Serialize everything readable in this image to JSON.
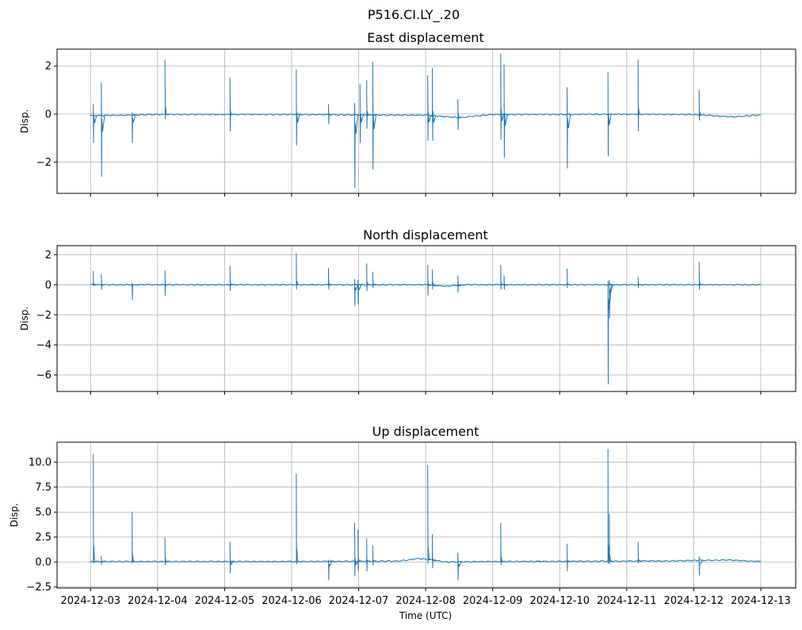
{
  "chart_data": {
    "title": "P516.CI.LY_.20",
    "type": "line",
    "xlabel": "Time (UTC)",
    "x_ticks": [
      "2024-12-03",
      "2024-12-04",
      "2024-12-05",
      "2024-12-06",
      "2024-12-07",
      "2024-12-08",
      "2024-12-09",
      "2024-12-10",
      "2024-12-11",
      "2024-12-12",
      "2024-12-13"
    ],
    "xlim": [
      "2024-12-02T12:00",
      "2024-12-13T12:30"
    ],
    "grid": true,
    "line_color": "#1f77b4",
    "panels": [
      {
        "title": "East displacement",
        "ylabel": "Disp.",
        "ylim": [
          -3.3,
          2.7
        ],
        "yticks": [
          2,
          0,
          -2
        ],
        "ytick_labels": [
          "2",
          "0",
          "−2"
        ],
        "baseline": [
          [
            0.0,
            -0.07
          ],
          [
            1.0,
            -0.02
          ],
          [
            3.0,
            -0.02
          ],
          [
            5.0,
            -0.05
          ],
          [
            5.5,
            -0.15
          ],
          [
            5.75,
            -0.08
          ],
          [
            6.0,
            -0.02
          ],
          [
            8.0,
            -0.01
          ],
          [
            9.0,
            -0.02
          ],
          [
            9.6,
            -0.12
          ],
          [
            9.9,
            -0.05
          ],
          [
            10.0,
            -0.05
          ]
        ],
        "spikes": [
          {
            "t": 0.04,
            "max": 0.4,
            "min": -1.2
          },
          {
            "t": 0.16,
            "max": 1.3,
            "min": -2.6
          },
          {
            "t": 0.62,
            "max": 0.05,
            "min": -1.2
          },
          {
            "t": 1.11,
            "max": 2.25,
            "min": -0.2
          },
          {
            "t": 2.08,
            "max": 1.5,
            "min": -0.7
          },
          {
            "t": 3.07,
            "max": 1.85,
            "min": -1.3
          },
          {
            "t": 3.55,
            "max": 0.4,
            "min": -0.4
          },
          {
            "t": 3.94,
            "max": 0.45,
            "min": -3.05
          },
          {
            "t": 4.02,
            "max": 1.25,
            "min": -1.2
          },
          {
            "t": 4.12,
            "max": 1.4,
            "min": -0.6
          },
          {
            "t": 4.21,
            "max": 2.15,
            "min": -2.3
          },
          {
            "t": 5.03,
            "max": 1.6,
            "min": -1.1
          },
          {
            "t": 5.1,
            "max": 1.9,
            "min": -1.1
          },
          {
            "t": 5.48,
            "max": 0.6,
            "min": -0.65
          },
          {
            "t": 6.12,
            "max": 2.5,
            "min": -1.05
          },
          {
            "t": 6.17,
            "max": 2.05,
            "min": -1.8
          },
          {
            "t": 7.11,
            "max": 1.1,
            "min": -2.25
          },
          {
            "t": 7.72,
            "max": 1.75,
            "min": -1.75
          },
          {
            "t": 8.17,
            "max": 2.25,
            "min": -0.7
          },
          {
            "t": 9.08,
            "max": 1.0,
            "min": -0.25
          }
        ]
      },
      {
        "title": "North displacement",
        "ylabel": "Disp.",
        "ylim": [
          -7.1,
          2.6
        ],
        "yticks": [
          2,
          0,
          -2,
          -4,
          -6
        ],
        "ytick_labels": [
          "2",
          "0",
          "−2",
          "−4",
          "−6"
        ],
        "baseline": [
          [
            0.0,
            0.0
          ],
          [
            5.0,
            0.0
          ],
          [
            5.3,
            -0.1
          ],
          [
            5.6,
            0.0
          ],
          [
            10.0,
            0.0
          ]
        ],
        "spikes": [
          {
            "t": 0.04,
            "max": 0.9,
            "min": -0.05
          },
          {
            "t": 0.16,
            "max": 0.7,
            "min": -0.3
          },
          {
            "t": 0.62,
            "max": 0.1,
            "min": -1.0
          },
          {
            "t": 1.11,
            "max": 0.95,
            "min": -0.7
          },
          {
            "t": 2.08,
            "max": 1.25,
            "min": -0.4
          },
          {
            "t": 3.07,
            "max": 2.1,
            "min": -0.3
          },
          {
            "t": 3.55,
            "max": 1.1,
            "min": -0.3
          },
          {
            "t": 3.94,
            "max": 0.35,
            "min": -1.4
          },
          {
            "t": 3.99,
            "max": 0.3,
            "min": -1.3
          },
          {
            "t": 4.12,
            "max": 1.4,
            "min": -0.4
          },
          {
            "t": 4.21,
            "max": 0.85,
            "min": -0.2
          },
          {
            "t": 5.03,
            "max": 1.3,
            "min": -0.7
          },
          {
            "t": 5.1,
            "max": 1.0,
            "min": -0.3
          },
          {
            "t": 5.48,
            "max": 0.6,
            "min": -0.5
          },
          {
            "t": 6.12,
            "max": 1.3,
            "min": -0.3
          },
          {
            "t": 6.17,
            "max": 0.6,
            "min": -0.3
          },
          {
            "t": 7.11,
            "max": 1.05,
            "min": -0.2
          },
          {
            "t": 7.72,
            "max": 0.2,
            "min": -6.6
          },
          {
            "t": 7.74,
            "max": 0.3,
            "min": -2.2
          },
          {
            "t": 8.17,
            "max": 0.5,
            "min": -0.2
          },
          {
            "t": 9.08,
            "max": 1.5,
            "min": -0.3
          }
        ]
      },
      {
        "title": "Up displacement",
        "ylabel": "Disp.",
        "ylim": [
          -2.6,
          12.0
        ],
        "yticks": [
          10.0,
          7.5,
          5.0,
          2.5,
          0.0,
          -2.5
        ],
        "ytick_labels": [
          "10.0",
          "7.5",
          "5.0",
          "2.5",
          "0.0",
          "−2.5"
        ],
        "baseline": [
          [
            0.0,
            0.05
          ],
          [
            3.0,
            0.05
          ],
          [
            4.6,
            0.1
          ],
          [
            4.9,
            0.35
          ],
          [
            5.0,
            0.3
          ],
          [
            5.3,
            0.0
          ],
          [
            6.0,
            0.05
          ],
          [
            8.5,
            0.1
          ],
          [
            9.5,
            0.2
          ],
          [
            10.0,
            0.05
          ]
        ],
        "spikes": [
          {
            "t": 0.04,
            "max": 10.8,
            "min": -0.1
          },
          {
            "t": 0.16,
            "max": 0.6,
            "min": -0.2
          },
          {
            "t": 0.62,
            "max": 5.0,
            "min": -0.1
          },
          {
            "t": 1.11,
            "max": 2.4,
            "min": -0.3
          },
          {
            "t": 2.08,
            "max": 2.0,
            "min": -1.1
          },
          {
            "t": 3.07,
            "max": 8.85,
            "min": -0.2
          },
          {
            "t": 3.55,
            "max": 0.2,
            "min": -1.8
          },
          {
            "t": 3.94,
            "max": 3.9,
            "min": -1.4
          },
          {
            "t": 3.99,
            "max": 3.2,
            "min": -0.8
          },
          {
            "t": 4.12,
            "max": 2.35,
            "min": -0.9
          },
          {
            "t": 4.21,
            "max": 1.65,
            "min": -0.3
          },
          {
            "t": 5.03,
            "max": 9.7,
            "min": -0.1
          },
          {
            "t": 5.1,
            "max": 2.75,
            "min": -0.6
          },
          {
            "t": 5.48,
            "max": 0.9,
            "min": -1.8
          },
          {
            "t": 6.12,
            "max": 3.9,
            "min": -0.3
          },
          {
            "t": 7.11,
            "max": 1.8,
            "min": -0.9
          },
          {
            "t": 7.72,
            "max": 11.3,
            "min": -0.1
          },
          {
            "t": 7.74,
            "max": 4.8,
            "min": -0.2
          },
          {
            "t": 8.17,
            "max": 2.0,
            "min": -0.1
          },
          {
            "t": 9.08,
            "max": 0.5,
            "min": -1.3
          }
        ]
      }
    ]
  }
}
